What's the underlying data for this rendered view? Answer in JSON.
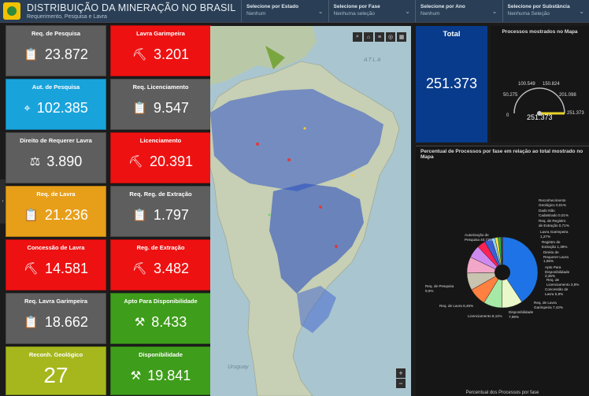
{
  "header": {
    "title": "DISTRIBUIÇÃO DA MINERAÇÃO NO BRASIL",
    "subtitle": "Requerimento, Pesquisa e Lavra",
    "filters": [
      {
        "label": "Selecione por Estado",
        "value": "Nenhum"
      },
      {
        "label": "Selecione por Fase",
        "value": "Nenhuma seleção"
      },
      {
        "label": "Selecione por Ano",
        "value": "Nenhum"
      },
      {
        "label": "Selecione por Substância",
        "value": "Nenhuma Seleção"
      }
    ]
  },
  "cards": [
    {
      "title": "Req. de Pesquisa",
      "value": "23.872",
      "icon": "clipboard-icon",
      "color": "#5e5e5e"
    },
    {
      "title": "Lavra Garimpeira",
      "value": "3.201",
      "icon": "miner-icon",
      "color": "#ee1111"
    },
    {
      "title": "Aut. de Pesquisa",
      "value": "102.385",
      "icon": "search-pin-icon",
      "color": "#19a3db"
    },
    {
      "title": "Req. Licenciamento",
      "value": "9.547",
      "icon": "clipboard-icon",
      "color": "#5e5e5e"
    },
    {
      "title": "Direito de Requerer Lavra",
      "value": "3.890",
      "icon": "gavel-icon",
      "color": "#5e5e5e"
    },
    {
      "title": "Licenciamento",
      "value": "20.391",
      "icon": "miner-icon",
      "color": "#ee1111"
    },
    {
      "title": "Req. de Lavra",
      "value": "21.236",
      "icon": "clipboard-icon",
      "color": "#e79f1a"
    },
    {
      "title": "Req. Reg. de Extração",
      "value": "1.797",
      "icon": "clipboard-icon",
      "color": "#5e5e5e"
    },
    {
      "title": "Concessão de Lavra",
      "value": "14.581",
      "icon": "miner-icon",
      "color": "#ee1111"
    },
    {
      "title": "Reg. de Extração",
      "value": "3.482",
      "icon": "miner-icon",
      "color": "#ee1111"
    },
    {
      "title": "Req. Lavra Garimpeira",
      "value": "18.662",
      "icon": "clipboard-icon",
      "color": "#5e5e5e"
    },
    {
      "title": "Apto Para Disponibilidade",
      "value": "8.433",
      "icon": "tools-icon",
      "color": "#3e9d1a"
    },
    {
      "title": "Reconh. Geológico",
      "value": "27",
      "icon": "",
      "color": "#a5b71c"
    },
    {
      "title": "Disponibilidade",
      "value": "19.841",
      "icon": "tools-icon",
      "color": "#3e9d1a"
    }
  ],
  "map": {
    "ocean_label": "ATLA",
    "country_labels": [
      "Uruguay"
    ]
  },
  "total": {
    "title": "Total",
    "value": "251.373"
  },
  "gauge": {
    "title": "Processos mostrados no Mapa",
    "value": "251.373",
    "ticks": [
      "0",
      "50.275",
      "100.549",
      "150.824",
      "201.098",
      "251.373"
    ]
  },
  "pie": {
    "title": "Percentual de Processos por fase em relação ao total mostrado no Mapa",
    "footer": "Percentual dos Processos por fase",
    "labels": [
      "Reconhecimento\nGeológico 0,01%",
      "Dado Não\nCadastrado 0,01%",
      "Req. de Registro\nde Extração 0,71%",
      "Lavra Garimpeira\n1,27%",
      "Registro de\nExtração 1,39%",
      "Direito de\nRequerer Lavra\n1,55%",
      "Apto Para\nDisponibilidade\n3,35%",
      "Req. de\nLicenciamento 3,8%",
      "Concessão de\nLavra 5,8%",
      "Req. de Lavra\nGarimpeira 7,42%",
      "Disponibilidade\n7,89%",
      "Licenciamento 8,11%",
      "Req. de Lavra 8,45%",
      "Req. de Pesquisa\n9,5%",
      "Autorização de\nPesquisa 40,73%"
    ]
  },
  "chart_data": {
    "type": "pie",
    "title": "Percentual de Processos por fase em relação ao total mostrado no Mapa",
    "categories": [
      "Autorização de Pesquisa",
      "Req. de Pesquisa",
      "Req. de Lavra",
      "Licenciamento",
      "Disponibilidade",
      "Req. de Lavra Garimpeira",
      "Concessão de Lavra",
      "Req. de Licenciamento",
      "Apto Para Disponibilidade",
      "Direito de Requerer Lavra",
      "Registro de Extração",
      "Lavra Garimpeira",
      "Req. de Registro de Extração",
      "Dado Não Cadastrado",
      "Reconhecimento Geológico"
    ],
    "values": [
      40.73,
      9.5,
      8.45,
      8.11,
      7.89,
      7.42,
      5.8,
      3.8,
      3.35,
      1.55,
      1.39,
      1.27,
      0.71,
      0.01,
      0.01
    ],
    "colors": [
      "#1e74e6",
      "#eaf7c8",
      "#a6e8a6",
      "#ff8040",
      "#c9c4b0",
      "#f2a6c8",
      "#cf8af0",
      "#ff2255",
      "#3b5fd4",
      "#8fd1f5",
      "#ffe04a",
      "#24b84a",
      "#d33030",
      "#555555",
      "#777777"
    ]
  }
}
